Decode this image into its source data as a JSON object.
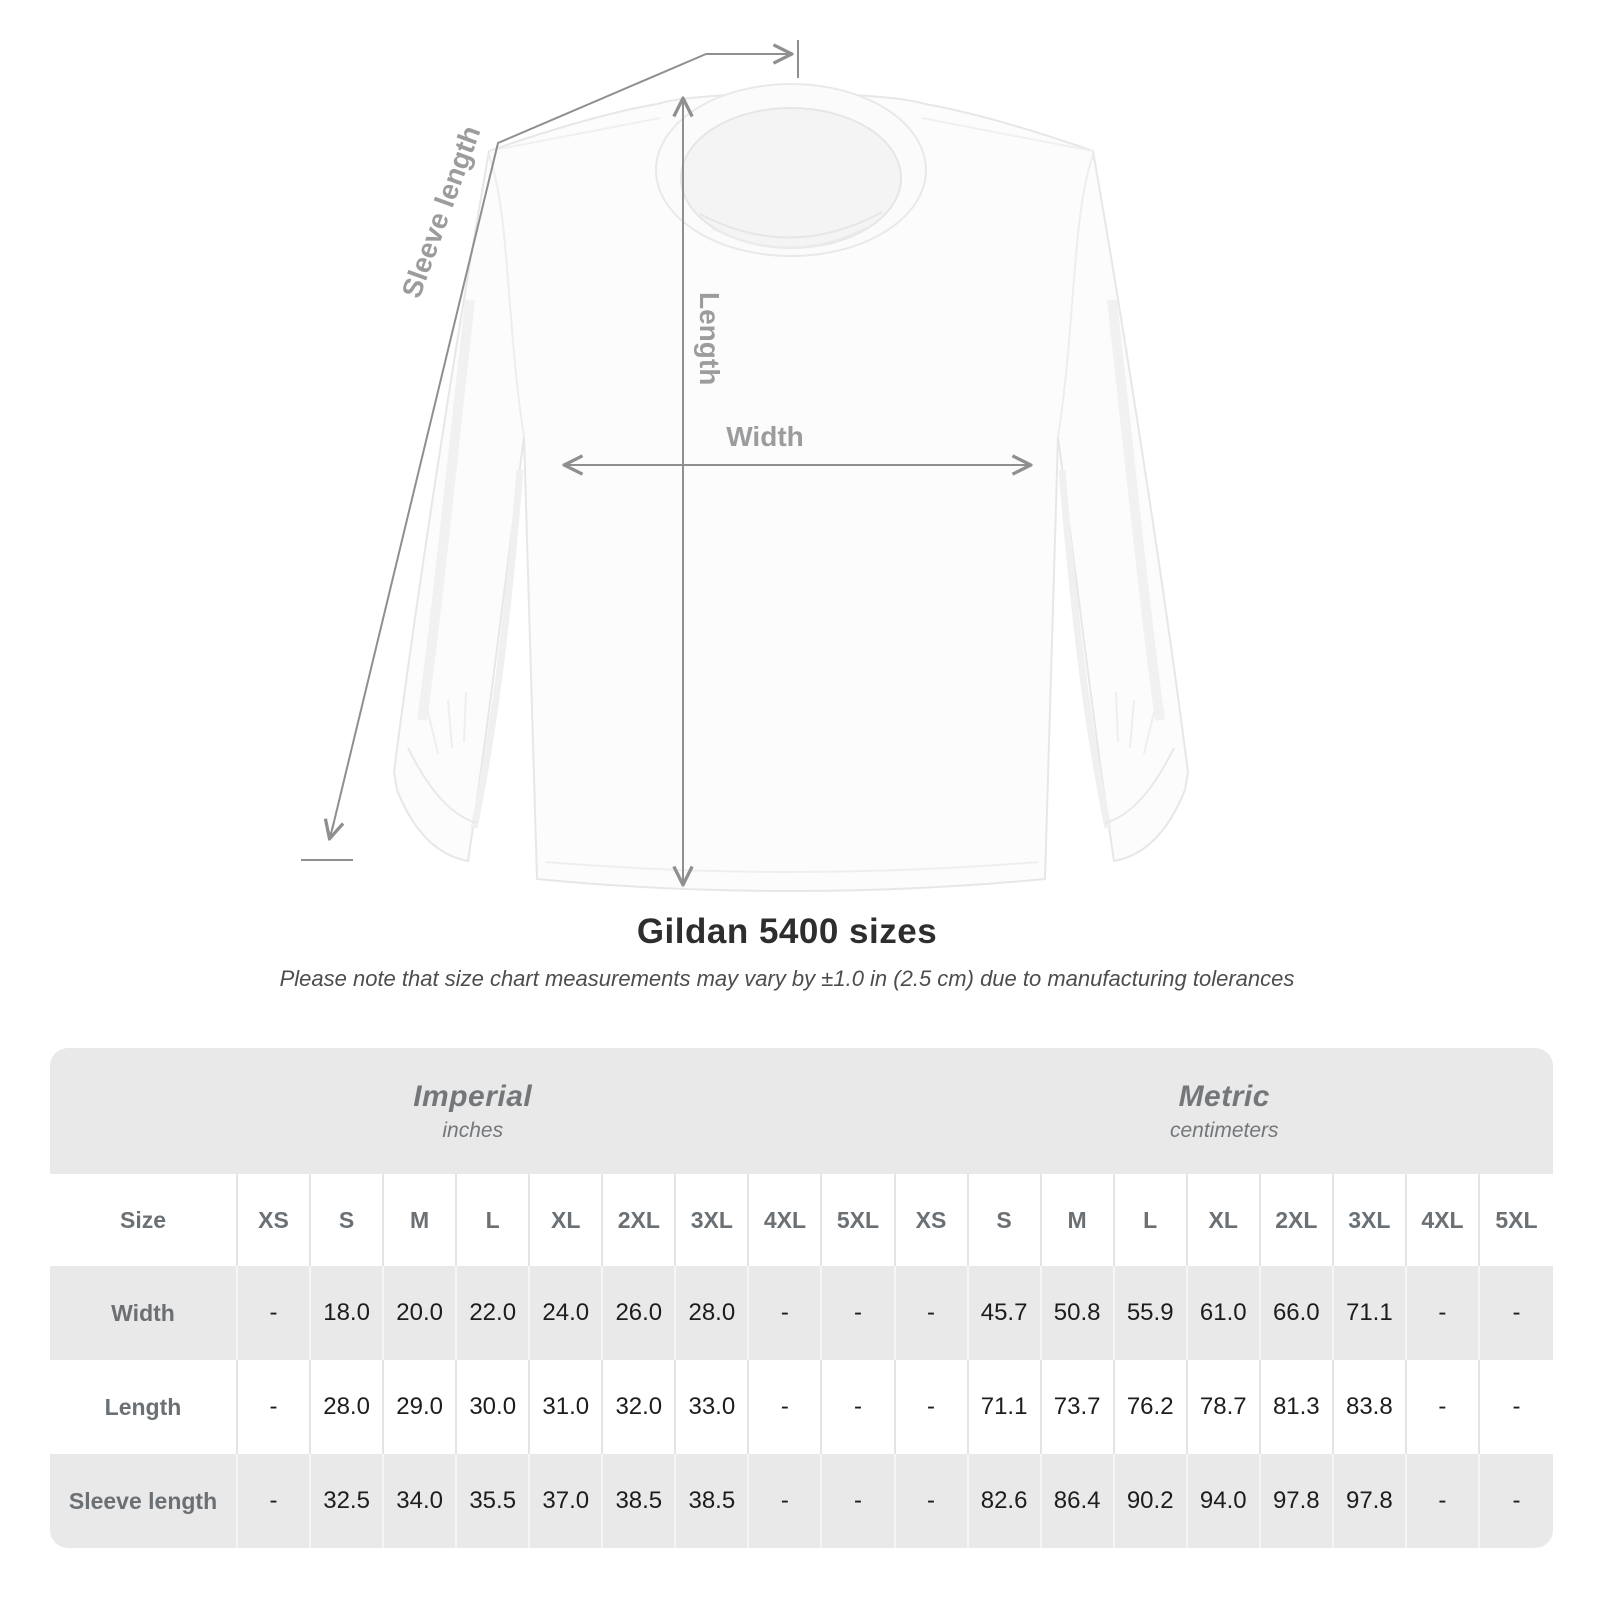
{
  "diagram": {
    "sleeve_length_label": "Sleeve length",
    "length_label": "Length",
    "width_label": "Width"
  },
  "title": "Gildan 5400 sizes",
  "subtitle": "Please note that size chart measurements may vary by ±1.0 in (2.5 cm) due to manufacturing tolerances",
  "size_table": {
    "corner_header": "Size",
    "unit_groups": [
      {
        "label": "Imperial",
        "sub": "inches"
      },
      {
        "label": "Metric",
        "sub": "centimeters"
      }
    ],
    "sizes": [
      "XS",
      "S",
      "M",
      "L",
      "XL",
      "2XL",
      "3XL",
      "4XL",
      "5XL"
    ],
    "rows": [
      {
        "label": "Width",
        "imperial": [
          "-",
          "18.0",
          "20.0",
          "22.0",
          "24.0",
          "26.0",
          "28.0",
          "-",
          "-"
        ],
        "metric": [
          "-",
          "45.7",
          "50.8",
          "55.9",
          "61.0",
          "66.0",
          "71.1",
          "-",
          "-"
        ]
      },
      {
        "label": "Length",
        "imperial": [
          "-",
          "28.0",
          "29.0",
          "30.0",
          "31.0",
          "32.0",
          "33.0",
          "-",
          "-"
        ],
        "metric": [
          "-",
          "71.1",
          "73.7",
          "76.2",
          "78.7",
          "81.3",
          "83.8",
          "-",
          "-"
        ]
      },
      {
        "label": "Sleeve length",
        "imperial": [
          "-",
          "32.5",
          "34.0",
          "35.5",
          "37.0",
          "38.5",
          "38.5",
          "-",
          "-"
        ],
        "metric": [
          "-",
          "82.6",
          "86.4",
          "90.2",
          "94.0",
          "97.8",
          "97.8",
          "-",
          "-"
        ]
      }
    ]
  },
  "colors": {
    "table_band": "#e9e9e9",
    "measure_line": "#8f8f8f",
    "measure_label": "#9b9c9e",
    "header_text": "#6b7074",
    "value_text": "#1d1d1d"
  }
}
